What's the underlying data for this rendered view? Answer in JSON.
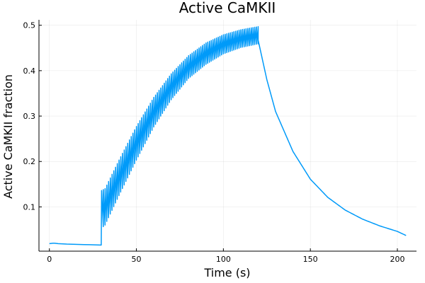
{
  "chart_data": {
    "type": "line",
    "title": "Active CaMKII",
    "xlabel": "Time (s)",
    "ylabel": "Active CaMKII fraction",
    "xlim": [
      -6,
      211
    ],
    "ylim": [
      0.0025,
      0.512
    ],
    "xticks": [
      0,
      50,
      100,
      150,
      200
    ],
    "yticks": [
      0.1,
      0.2,
      0.3,
      0.4,
      0.5
    ],
    "xtick_labels": [
      "0",
      "50",
      "100",
      "150",
      "200"
    ],
    "ytick_labels": [
      "0.1",
      "0.2",
      "0.3",
      "0.4",
      "0.5"
    ],
    "grid": true,
    "legend": "none",
    "series": [
      {
        "color": "#009AF9",
        "segments": {
          "baseline": {
            "x": [
              0,
              2,
              3,
              5,
              10,
              15,
              20,
              25,
              29.8
            ],
            "y": [
              0.019,
              0.02,
              0.02,
              0.019,
              0.018,
              0.0175,
              0.017,
              0.0165,
              0.016
            ]
          },
          "stimulation": {
            "t_start": 30,
            "t_end": 120,
            "pulse_count": 90,
            "upper_envelope": {
              "x": [
                30,
                32,
                40,
                50,
                60,
                70,
                80,
                90,
                100,
                110,
                120
              ],
              "y": [
                0.136,
                0.14,
                0.203,
                0.277,
                0.341,
                0.393,
                0.433,
                0.461,
                0.479,
                0.49,
                0.497
              ]
            },
            "lower_envelope": {
              "x": [
                30,
                32,
                40,
                50,
                60,
                70,
                80,
                90,
                100,
                110,
                120
              ],
              "y": [
                0.053,
                0.06,
                0.125,
                0.203,
                0.276,
                0.336,
                0.383,
                0.414,
                0.437,
                0.451,
                0.459
              ]
            }
          },
          "decay": {
            "x": [
              120,
              125,
              130,
              140,
              150,
              160,
              170,
              180,
              190,
              200,
              205
            ],
            "y": [
              0.467,
              0.38,
              0.31,
              0.222,
              0.161,
              0.121,
              0.093,
              0.073,
              0.058,
              0.046,
              0.037
            ]
          }
        }
      }
    ]
  }
}
